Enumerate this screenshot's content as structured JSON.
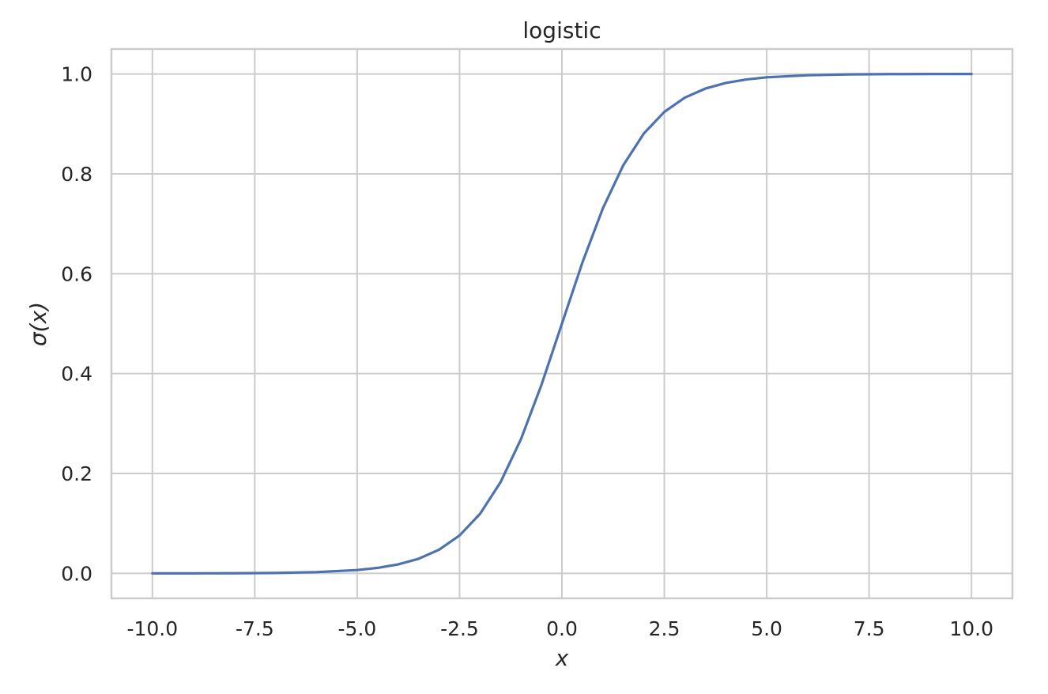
{
  "chart_data": {
    "type": "line",
    "title": "logistic",
    "xlabel": "x",
    "ylabel": "σ(x)",
    "xlim": [
      -11.0,
      11.0
    ],
    "ylim": [
      -0.05,
      1.05
    ],
    "xticks": [
      -10.0,
      -7.5,
      -5.0,
      -2.5,
      0.0,
      2.5,
      5.0,
      7.5,
      10.0
    ],
    "xtick_labels": [
      "-10.0",
      "-7.5",
      "-5.0",
      "-2.5",
      "0.0",
      "2.5",
      "5.0",
      "7.5",
      "10.0"
    ],
    "yticks": [
      0.0,
      0.2,
      0.4,
      0.6,
      0.8,
      1.0
    ],
    "ytick_labels": [
      "0.0",
      "0.2",
      "0.4",
      "0.6",
      "0.8",
      "1.0"
    ],
    "grid": true,
    "series": [
      {
        "color": "#4c72b0",
        "x": [
          -10.0,
          -9.0,
          -8.0,
          -7.0,
          -6.0,
          -5.0,
          -4.5,
          -4.0,
          -3.5,
          -3.0,
          -2.5,
          -2.0,
          -1.5,
          -1.0,
          -0.5,
          0.0,
          0.5,
          1.0,
          1.5,
          2.0,
          2.5,
          3.0,
          3.5,
          4.0,
          4.5,
          5.0,
          6.0,
          7.0,
          8.0,
          9.0,
          10.0
        ],
        "y": [
          0.0,
          0.0001,
          0.0003,
          0.0009,
          0.0025,
          0.0067,
          0.011,
          0.018,
          0.0293,
          0.0474,
          0.0759,
          0.1192,
          0.1824,
          0.2689,
          0.3775,
          0.5,
          0.6225,
          0.7311,
          0.8176,
          0.8808,
          0.9241,
          0.9526,
          0.9707,
          0.982,
          0.989,
          0.9933,
          0.9975,
          0.9991,
          0.9997,
          0.9999,
          1.0
        ]
      }
    ]
  }
}
